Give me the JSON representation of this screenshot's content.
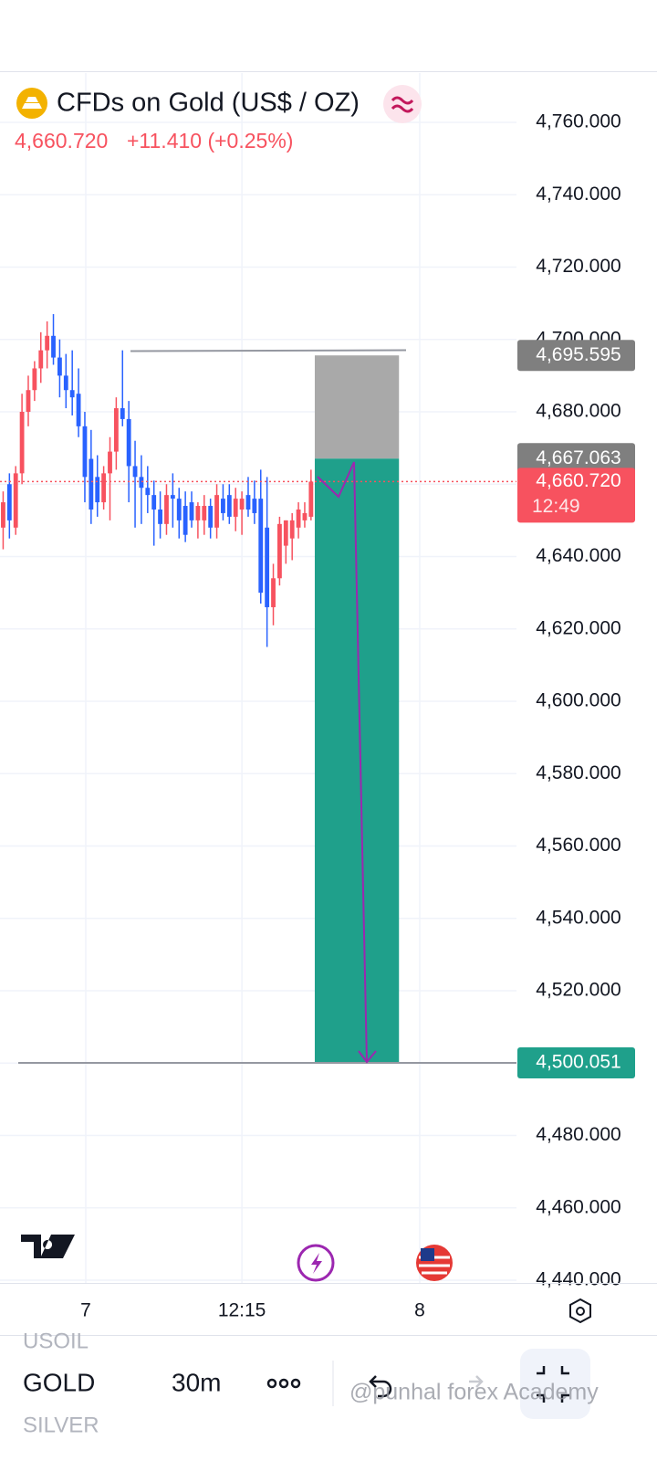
{
  "header": {
    "symbol": "CFDs on Gold (US$ / OZ)",
    "change": "+11.410 (+0.25%)"
  },
  "chart_data": {
    "type": "candlestick",
    "up_color": "#f7525f",
    "down_color": "#2962ff",
    "open": [
      4648,
      4660,
      4648,
      4663,
      4680,
      4686,
      4692,
      4697,
      4701,
      4695,
      4690,
      4686,
      4685,
      4676,
      4667,
      4662,
      4655,
      4663,
      4669,
      4681,
      4678,
      4665,
      4662,
      4659,
      4657,
      4653,
      4649,
      4657,
      4656,
      4654,
      4655,
      4650,
      4650,
      4654,
      4648,
      4656,
      4657,
      4651,
      4653,
      4657,
      4656,
      4656,
      4648,
      4626,
      4634,
      4643,
      4645,
      4648,
      4650,
      4651
    ],
    "high": [
      4658,
      4663,
      4665,
      4685,
      4690,
      4694,
      4702,
      4705,
      4707,
      4700,
      4696,
      4697,
      4692,
      4680,
      4675,
      4668,
      4665,
      4673,
      4684,
      4697,
      4683,
      4672,
      4668,
      4665,
      4661,
      4658,
      4660,
      4663,
      4659,
      4658,
      4658,
      4655,
      4657,
      4656,
      4660,
      4660,
      4660,
      4659,
      4658,
      4662,
      4661,
      4664,
      4662,
      4638,
      4651,
      4650,
      4652,
      4655,
      4655,
      4664
    ],
    "low": [
      4642,
      4645,
      4646,
      4660,
      4676,
      4683,
      4688,
      4692,
      4693,
      4684,
      4681,
      4679,
      4673,
      4655,
      4649,
      4651,
      4653,
      4650,
      4664,
      4676,
      4655,
      4648,
      4649,
      4652,
      4643,
      4645,
      4646,
      4648,
      4645,
      4644,
      4648,
      4645,
      4646,
      4645,
      4645,
      4650,
      4649,
      4647,
      4646,
      4651,
      4649,
      4627,
      4615,
      4621,
      4632,
      4638,
      4639,
      4645,
      4648,
      4650
    ],
    "close": [
      4655,
      4650,
      4663,
      4680,
      4686,
      4692,
      4697,
      4701,
      4695,
      4690,
      4686,
      4684,
      4676,
      4662,
      4653,
      4655,
      4663,
      4669,
      4681,
      4678,
      4665,
      4662,
      4659,
      4657,
      4653,
      4649,
      4657,
      4656,
      4650,
      4646,
      4650,
      4654,
      4654,
      4648,
      4657,
      4652,
      4651,
      4656,
      4656,
      4653,
      4652,
      4630,
      4626,
      4634,
      4649,
      4650,
      4650,
      4653,
      4652,
      4660.72
    ],
    "xlim": [
      0,
      82.2
    ],
    "xticks": [
      {
        "value": 13.65,
        "label": "7"
      },
      {
        "value": 38.5,
        "label": "12:15"
      },
      {
        "value": 66.8,
        "label": "8"
      }
    ],
    "ylim": [
      4439.24,
      4773.63
    ],
    "yticks": [
      {
        "value": 4440,
        "label": "4,440.000"
      },
      {
        "value": 4460,
        "label": "4,460.000"
      },
      {
        "value": 4480,
        "label": "4,480.000"
      },
      {
        "value": 4500,
        "label": "4,500.000"
      },
      {
        "value": 4520,
        "label": "4,520.000"
      },
      {
        "value": 4540,
        "label": "4,540.000"
      },
      {
        "value": 4560,
        "label": "4,560.000"
      },
      {
        "value": 4580,
        "label": "4,580.000"
      },
      {
        "value": 4600,
        "label": "4,600.000"
      },
      {
        "value": 4620,
        "label": "4,620.000"
      },
      {
        "value": 4640,
        "label": "4,640.000"
      },
      {
        "value": 4660,
        "label": "4,660.000"
      },
      {
        "value": 4680,
        "label": "4,680.000"
      },
      {
        "value": 4700,
        "label": "4,700.000"
      },
      {
        "value": 4720,
        "label": "4,720.000"
      },
      {
        "value": 4740,
        "label": "4,740.000"
      },
      {
        "value": 4760,
        "label": "4,760.000"
      }
    ],
    "grid": true,
    "last_price": {
      "value": 4660.72,
      "label": "4,660.720",
      "countdown": "12:49",
      "color": "#f7525f"
    },
    "position": {
      "x_range": [
        50.1,
        63.5
      ],
      "stop": {
        "value": 4695.595,
        "label": "4,695.595",
        "color": "#a9a9a9"
      },
      "entry": {
        "value": 4667.063,
        "label": "4,667.063",
        "color": "#7f7f7f"
      },
      "target": {
        "value": 4500.051,
        "label": "4,500.051",
        "color": "#1fa08b"
      }
    }
  },
  "bottom": {
    "tabs": [
      "USOIL",
      "GOLD",
      "SILVER"
    ],
    "interval": "30m",
    "watermark": "@punhal forex Academy"
  }
}
